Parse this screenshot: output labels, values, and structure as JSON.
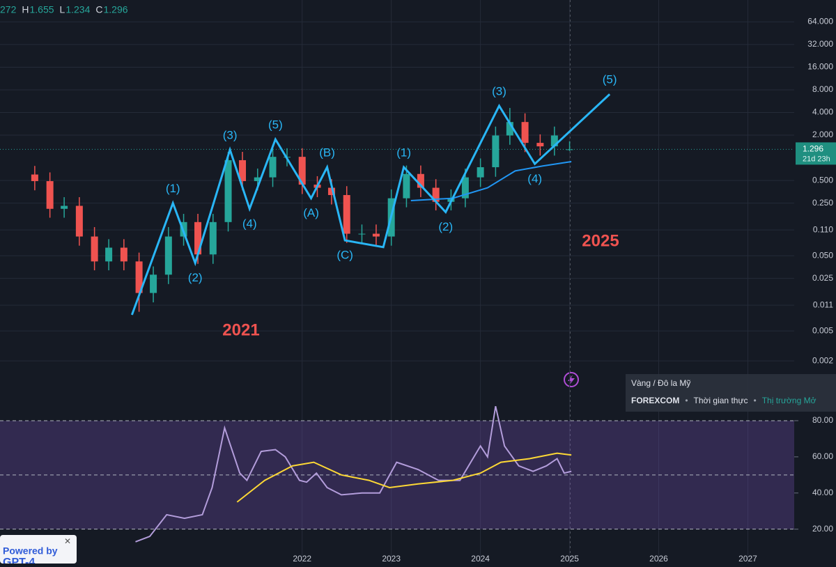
{
  "header": {
    "open_fragment": "272",
    "high_label": "H",
    "low_label": "L",
    "close_label": "C"
  },
  "symbol_info": {
    "name": "Vàng / Đô la Mỹ",
    "exchange": "FOREXCOM",
    "separator": "•",
    "feed": "Thời gian thực",
    "status": "Thị trường Mở"
  },
  "ad": {
    "line1": "Powered by",
    "line2": "GPT-4"
  },
  "chart_data": [
    {
      "type": "candlestick",
      "log_scale": true,
      "grid": true,
      "up_color": "#26a69a",
      "down_color": "#ef5350",
      "x": [
        2019.0,
        2019.17,
        2019.33,
        2019.5,
        2019.67,
        2019.83,
        2020.0,
        2020.17,
        2020.33,
        2020.5,
        2020.67,
        2020.83,
        2021.0,
        2021.17,
        2021.33,
        2021.5,
        2021.67,
        2021.83,
        2022.0,
        2022.17,
        2022.33,
        2022.5,
        2022.67,
        2022.83,
        2023.0,
        2023.17,
        2023.33,
        2023.5,
        2023.67,
        2023.83,
        2024.0,
        2024.17,
        2024.33,
        2024.5,
        2024.67,
        2024.83,
        2025.0
      ],
      "open": [
        0.6,
        0.49,
        0.21,
        0.23,
        0.09,
        0.042,
        0.064,
        0.042,
        0.016,
        0.028,
        0.09,
        0.14,
        0.052,
        0.14,
        0.93,
        0.49,
        0.55,
        1.03,
        1.03,
        0.44,
        0.4,
        0.32,
        0.098,
        0.098,
        0.09,
        0.29,
        0.61,
        0.4,
        0.26,
        0.29,
        0.55,
        0.75,
        1.98,
        2.99,
        1.58,
        1.42,
        1.272
      ],
      "high": [
        0.78,
        0.64,
        0.3,
        0.3,
        0.12,
        0.083,
        0.083,
        0.055,
        0.036,
        0.12,
        0.18,
        0.18,
        0.18,
        1.2,
        1.2,
        0.72,
        1.34,
        1.34,
        1.34,
        0.57,
        0.52,
        0.42,
        0.13,
        0.13,
        0.38,
        0.79,
        0.79,
        0.52,
        0.38,
        0.72,
        0.98,
        2.6,
        4.6,
        3.9,
        2.05,
        2.6,
        1.655
      ],
      "low": [
        0.37,
        0.16,
        0.16,
        0.068,
        0.032,
        0.032,
        0.032,
        0.009,
        0.012,
        0.021,
        0.068,
        0.039,
        0.039,
        0.105,
        0.37,
        0.37,
        0.41,
        0.77,
        0.33,
        0.3,
        0.24,
        0.074,
        0.074,
        0.068,
        0.068,
        0.22,
        0.3,
        0.2,
        0.2,
        0.22,
        0.41,
        0.56,
        1.49,
        1.19,
        1.07,
        1.07,
        1.234
      ],
      "close": [
        0.49,
        0.21,
        0.23,
        0.09,
        0.042,
        0.064,
        0.042,
        0.016,
        0.028,
        0.09,
        0.14,
        0.052,
        0.14,
        0.93,
        0.49,
        0.55,
        1.03,
        1.03,
        0.44,
        0.4,
        0.32,
        0.098,
        0.098,
        0.09,
        0.29,
        0.61,
        0.4,
        0.26,
        0.29,
        0.55,
        0.75,
        1.98,
        2.99,
        1.58,
        1.42,
        1.98,
        1.296
      ],
      "xlim": [
        2018.61,
        2027.52
      ],
      "xticks": [
        2022,
        2023,
        2024,
        2025,
        2026,
        2027
      ],
      "ylim": [
        0.00082,
        125
      ],
      "yticks": [
        {
          "value": 64,
          "label": "64.000"
        },
        {
          "value": 32,
          "label": "32.000"
        },
        {
          "value": 16,
          "label": "16.000"
        },
        {
          "value": 8,
          "label": "8.000"
        },
        {
          "value": 4,
          "label": "4.000"
        },
        {
          "value": 2,
          "label": "2.000"
        },
        {
          "value": 0.5,
          "label": "0.500"
        },
        {
          "value": 0.25,
          "label": "0.250"
        },
        {
          "value": 0.11,
          "label": "0.110"
        },
        {
          "value": 0.05,
          "label": "0.050"
        },
        {
          "value": 0.025,
          "label": "0.025"
        },
        {
          "value": 0.011,
          "label": "0.011"
        },
        {
          "value": 0.005,
          "label": "0.005"
        },
        {
          "value": 0.002,
          "label": "0.002"
        }
      ],
      "countdown": "21d 23h",
      "waves": {
        "color": "#29b6f6",
        "x": [
          2020.09,
          2020.55,
          2020.8,
          2021.19,
          2021.41,
          2021.7,
          2022.1,
          2022.28,
          2022.48,
          2022.91,
          2023.14,
          2023.61,
          2024.21,
          2024.61,
          2025.45
        ],
        "y": [
          0.0082,
          0.25,
          0.04,
          1.28,
          0.21,
          1.76,
          0.29,
          0.75,
          0.08,
          0.065,
          0.75,
          0.19,
          4.9,
          0.83,
          7.0
        ],
        "labels": [
          null,
          "(1)",
          "(2)",
          "(3)",
          "(4)",
          "(5)",
          "(A)",
          "(B)",
          "(C)",
          null,
          "(1)",
          "(2)",
          "(3)",
          "(4)",
          "(5)"
        ]
      },
      "moving_average": {
        "color": "#2196f3",
        "x": [
          2023.22,
          2023.69,
          2024.08,
          2024.39,
          2024.7,
          2025.02
        ],
        "y": [
          0.27,
          0.29,
          0.4,
          0.67,
          0.78,
          0.89
        ]
      },
      "annotation_color": "#ef5350",
      "annotations": [
        "2021",
        "2025"
      ]
    },
    {
      "type": "line",
      "grid": true,
      "ylim": [
        1,
        90
      ],
      "yticks": [
        {
          "value": 80,
          "label": "80.00"
        },
        {
          "value": 60,
          "label": "60.00"
        },
        {
          "value": 40,
          "label": "40.00"
        },
        {
          "value": 20,
          "label": "20.00"
        }
      ],
      "bands": [
        80,
        50,
        20
      ],
      "series": [
        {
          "color": "#b39ddb",
          "x": [
            2020.13,
            2020.29,
            2020.48,
            2020.68,
            2020.88,
            2020.99,
            2021.13,
            2021.3,
            2021.38,
            2021.54,
            2021.7,
            2021.81,
            2021.97,
            2022.05,
            2022.16,
            2022.28,
            2022.44,
            2022.67,
            2022.87,
            2023.06,
            2023.3,
            2023.53,
            2023.77,
            2024.0,
            2024.08,
            2024.17,
            2024.27,
            2024.43,
            2024.59,
            2024.74,
            2024.86,
            2024.94,
            2025.02
          ],
          "values": [
            13,
            16,
            28,
            26,
            28,
            43,
            76,
            51,
            47,
            63,
            64,
            60,
            47,
            46,
            51,
            43,
            39,
            40,
            40,
            57,
            53,
            47,
            47,
            66,
            60,
            88,
            66,
            55,
            52,
            55,
            59,
            51,
            52
          ]
        },
        {
          "color": "#fdd835",
          "x": [
            2021.27,
            2021.58,
            2021.89,
            2022.13,
            2022.44,
            2022.75,
            2022.98,
            2023.3,
            2023.69,
            2024.0,
            2024.23,
            2024.55,
            2024.86,
            2025.02
          ],
          "values": [
            35,
            47,
            55,
            57,
            50,
            47,
            43,
            45,
            47,
            51,
            57,
            59,
            62,
            61
          ]
        }
      ]
    }
  ]
}
